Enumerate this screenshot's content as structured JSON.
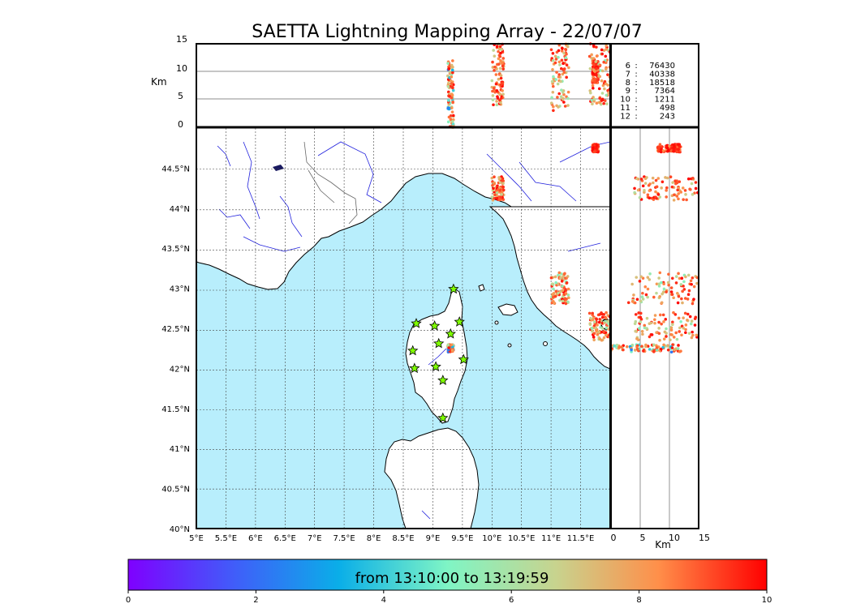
{
  "figure": {
    "title": "SAETTA Lightning Mapping Array - 22/07/07",
    "colorbar_label": "from 13:10:00 to 13:19:59",
    "colorbar_ticks": [
      "0",
      "2",
      "4",
      "6",
      "8",
      "10"
    ],
    "colors": {
      "sea": "#b8eefc",
      "land": "#ffffff",
      "coast": "#000000",
      "rivers": "#2222dd",
      "borders": "#666666",
      "grid": "#444444",
      "station_fill": "#7fff00",
      "highlight": "#ff0000"
    }
  },
  "counts_table": [
    {
      "level": "6",
      "sep": ":",
      "count": "76430",
      "highlight": false
    },
    {
      "level": "7",
      "sep": ":",
      "count": "40338",
      "highlight": true
    },
    {
      "level": "8",
      "sep": ":",
      "count": "18518",
      "highlight": false
    },
    {
      "level": "9",
      "sep": ":",
      "count": "7364",
      "highlight": false
    },
    {
      "level": "10",
      "sep": ":",
      "count": "1211",
      "highlight": false
    },
    {
      "level": "11",
      "sep": ":",
      "count": "498",
      "highlight": false
    },
    {
      "level": "12",
      "sep": ":",
      "count": "243",
      "highlight": false
    }
  ],
  "chart_data": {
    "type": "scatter",
    "map": {
      "xlabels": [
        "5°E",
        "5.5°E",
        "6°E",
        "6.5°E",
        "7°E",
        "7.5°E",
        "8°E",
        "8.5°E",
        "9°E",
        "9.5°E",
        "10°E",
        "10.5°E",
        "11°E",
        "11.5°E"
      ],
      "ylabels": [
        "40°N",
        "40.5°N",
        "41°N",
        "41.5°N",
        "42°N",
        "42.5°N",
        "43°N",
        "43.5°N",
        "44°N",
        "44.5°N"
      ],
      "xlim": [
        5,
        12
      ],
      "ylim": [
        40,
        45
      ],
      "grid": true
    },
    "top_panel": {
      "ylabel": "Km",
      "yticks": [
        "0",
        "5",
        "10",
        "15"
      ],
      "ylim": [
        0,
        15
      ]
    },
    "side_panel": {
      "xlabel": "Km",
      "xticks": [
        "0",
        "5",
        "10",
        "15"
      ],
      "xlim": [
        0,
        15
      ]
    },
    "stations": [
      {
        "lon": 9.35,
        "lat": 42.99
      },
      {
        "lon": 8.72,
        "lat": 42.56
      },
      {
        "lon": 9.03,
        "lat": 42.53
      },
      {
        "lon": 9.45,
        "lat": 42.58
      },
      {
        "lon": 9.3,
        "lat": 42.43
      },
      {
        "lon": 9.1,
        "lat": 42.31
      },
      {
        "lon": 8.66,
        "lat": 42.22
      },
      {
        "lon": 9.52,
        "lat": 42.11
      },
      {
        "lon": 9.05,
        "lat": 42.02
      },
      {
        "lon": 8.69,
        "lat": 42.0
      },
      {
        "lon": 9.17,
        "lat": 41.85
      },
      {
        "lon": 9.17,
        "lat": 41.38
      }
    ],
    "clusters": [
      {
        "lon": [
          10.0,
          10.2
        ],
        "lat": [
          44.1,
          44.4
        ],
        "alt": [
          4,
          15
        ],
        "time": [
          6,
          10
        ]
      },
      {
        "lon": [
          11.0,
          11.3
        ],
        "lat": [
          42.8,
          43.2
        ],
        "alt": [
          3,
          15
        ],
        "time": [
          5,
          10
        ]
      },
      {
        "lon": [
          11.7,
          11.8
        ],
        "lat": [
          44.7,
          44.8
        ],
        "alt": [
          8,
          12
        ],
        "time": [
          8,
          10
        ]
      },
      {
        "lon": [
          11.65,
          12.0
        ],
        "lat": [
          42.35,
          42.7
        ],
        "alt": [
          4,
          15
        ],
        "time": [
          5,
          10
        ]
      },
      {
        "lon": [
          9.25,
          9.35
        ],
        "lat": [
          42.2,
          42.3
        ],
        "alt": [
          0,
          12
        ],
        "time": [
          2,
          10
        ]
      }
    ]
  }
}
